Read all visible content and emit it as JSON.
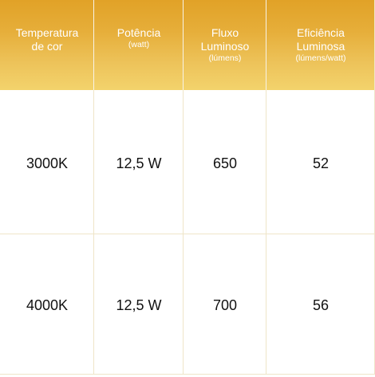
{
  "table": {
    "headers": [
      {
        "main": "Temperatura\nde cor",
        "sub": ""
      },
      {
        "main": "Potência",
        "sub": "(watt)"
      },
      {
        "main": "Fluxo\nLuminoso",
        "sub": "(lúmens)"
      },
      {
        "main": "Eficiência\nLuminosa",
        "sub": "(lúmens/watt)"
      }
    ],
    "rows": [
      [
        "3000K",
        "12,5 W",
        "650",
        "52"
      ],
      [
        "4000K",
        "12,5 W",
        "700",
        "56"
      ]
    ]
  },
  "colors": {
    "header_gradient_top": "#e1a227",
    "header_gradient_bottom": "#f3d36c",
    "header_text": "#ffffff",
    "body_text": "#111111",
    "grid_line": "#efe5c8"
  }
}
